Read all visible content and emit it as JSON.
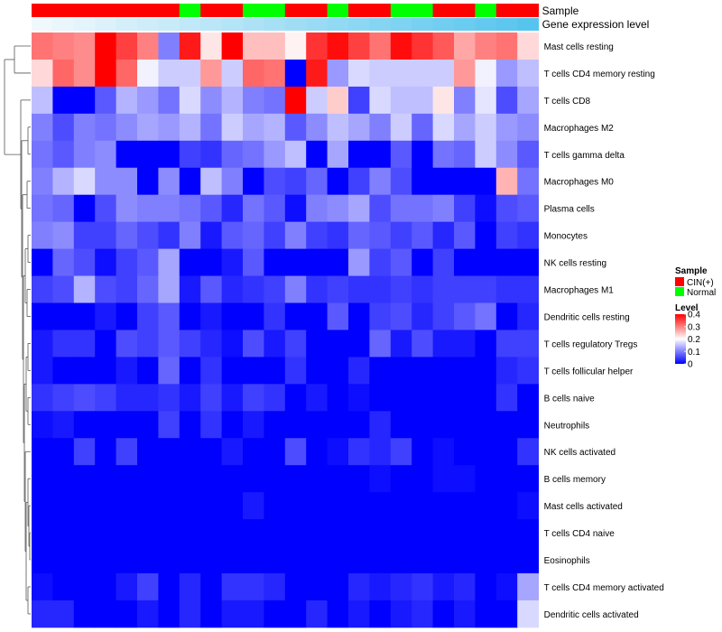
{
  "chart_data": {
    "type": "heatmap",
    "title": "",
    "annotation_rows": [
      {
        "name": "Sample",
        "key": "sample"
      },
      {
        "name": "Gene expression level",
        "key": "gene_expression_level"
      }
    ],
    "sample_groups": [
      "CIN(+)",
      "CIN(+)",
      "CIN(+)",
      "CIN(+)",
      "CIN(+)",
      "CIN(+)",
      "CIN(+)",
      "Normal",
      "CIN(+)",
      "CIN(+)",
      "Normal",
      "Normal",
      "CIN(+)",
      "CIN(+)",
      "Normal",
      "CIN(+)",
      "CIN(+)",
      "Normal",
      "Normal",
      "CIN(+)",
      "CIN(+)",
      "Normal",
      "CIN(+)",
      "CIN(+)"
    ],
    "gene_expression_level": [
      0.04,
      0.045,
      0.05,
      0.055,
      0.06,
      0.065,
      0.07,
      0.075,
      0.08,
      0.085,
      0.09,
      0.095,
      0.1,
      0.105,
      0.11,
      0.115,
      0.12,
      0.125,
      0.13,
      0.135,
      0.14,
      0.145,
      0.15,
      0.155
    ],
    "rows": [
      "Mast cells resting",
      "T cells CD4 memory resting",
      "T cells CD8",
      "Macrophages M2",
      "T cells gamma delta",
      "Macrophages M0",
      "Plasma cells",
      "Monocytes",
      "NK cells resting",
      "Macrophages M1",
      "Dendritic cells resting",
      "T cells regulatory  Tregs",
      "T cells follicular helper",
      "B cells naive",
      "Neutrophils",
      "NK cells activated",
      "B cells memory",
      "Mast cells activated",
      "T cells CD4 naive",
      "Eosinophils",
      "T cells CD4 memory activated",
      "Dendritic cells activated"
    ],
    "values": [
      [
        0.31,
        0.3,
        0.29,
        0.4,
        0.35,
        0.3,
        0.1,
        0.38,
        0.22,
        0.4,
        0.25,
        0.25,
        0.21,
        0.36,
        0.39,
        0.35,
        0.31,
        0.39,
        0.36,
        0.33,
        0.27,
        0.3,
        0.31,
        0.23
      ],
      [
        0.23,
        0.32,
        0.29,
        0.4,
        0.32,
        0.19,
        0.16,
        0.16,
        0.28,
        0.16,
        0.32,
        0.31,
        0.0,
        0.38,
        0.12,
        0.17,
        0.16,
        0.16,
        0.16,
        0.16,
        0.28,
        0.19,
        0.12,
        0.15
      ],
      [
        0.15,
        0.0,
        0.0,
        0.07,
        0.14,
        0.12,
        0.09,
        0.17,
        0.11,
        0.14,
        0.1,
        0.09,
        0.4,
        0.16,
        0.24,
        0.05,
        0.17,
        0.15,
        0.15,
        0.22,
        0.1,
        0.18,
        0.06,
        0.13
      ],
      [
        0.1,
        0.06,
        0.1,
        0.09,
        0.11,
        0.13,
        0.12,
        0.14,
        0.09,
        0.16,
        0.13,
        0.14,
        0.07,
        0.11,
        0.15,
        0.13,
        0.1,
        0.16,
        0.08,
        0.17,
        0.13,
        0.16,
        0.12,
        0.11
      ],
      [
        0.09,
        0.07,
        0.1,
        0.11,
        0.0,
        0.0,
        0.0,
        0.05,
        0.04,
        0.08,
        0.09,
        0.12,
        0.15,
        0.0,
        0.13,
        0.0,
        0.0,
        0.07,
        0.0,
        0.09,
        0.08,
        0.16,
        0.11,
        0.07
      ],
      [
        0.1,
        0.14,
        0.17,
        0.11,
        0.11,
        0.0,
        0.11,
        0.0,
        0.15,
        0.1,
        0.0,
        0.06,
        0.05,
        0.08,
        0.0,
        0.05,
        0.1,
        0.06,
        0.0,
        0.0,
        0.0,
        0.0,
        0.26,
        0.09
      ],
      [
        0.09,
        0.08,
        0.0,
        0.06,
        0.11,
        0.1,
        0.1,
        0.09,
        0.07,
        0.03,
        0.09,
        0.07,
        0.01,
        0.1,
        0.11,
        0.13,
        0.06,
        0.09,
        0.09,
        0.1,
        0.05,
        0.01,
        0.06,
        0.07
      ],
      [
        0.1,
        0.11,
        0.05,
        0.05,
        0.08,
        0.06,
        0.04,
        0.1,
        0.02,
        0.07,
        0.08,
        0.05,
        0.1,
        0.05,
        0.04,
        0.08,
        0.07,
        0.05,
        0.07,
        0.03,
        0.07,
        0.0,
        0.05,
        0.04
      ],
      [
        0.0,
        0.08,
        0.06,
        0.01,
        0.05,
        0.07,
        0.13,
        0.0,
        0.0,
        0.02,
        0.07,
        0.0,
        0.0,
        0.0,
        0.0,
        0.12,
        0.05,
        0.07,
        0.0,
        0.05,
        0.0,
        0.0,
        0.0,
        0.0
      ],
      [
        0.05,
        0.06,
        0.14,
        0.06,
        0.05,
        0.08,
        0.13,
        0.02,
        0.07,
        0.03,
        0.04,
        0.05,
        0.1,
        0.04,
        0.05,
        0.04,
        0.04,
        0.05,
        0.04,
        0.05,
        0.05,
        0.05,
        0.04,
        0.04
      ],
      [
        0.0,
        0.0,
        0.0,
        0.02,
        0.0,
        0.05,
        0.07,
        0.0,
        0.02,
        0.0,
        0.0,
        0.04,
        0.0,
        0.0,
        0.07,
        0.0,
        0.05,
        0.06,
        0.03,
        0.05,
        0.07,
        0.09,
        0.0,
        0.03
      ],
      [
        0.02,
        0.04,
        0.04,
        0.0,
        0.06,
        0.05,
        0.07,
        0.05,
        0.03,
        0.01,
        0.06,
        0.02,
        0.05,
        0.0,
        0.0,
        0.0,
        0.08,
        0.02,
        0.06,
        0.02,
        0.02,
        0.0,
        0.05,
        0.05
      ],
      [
        0.02,
        0.0,
        0.0,
        0.0,
        0.02,
        0.0,
        0.08,
        0.0,
        0.04,
        0.0,
        0.0,
        0.0,
        0.04,
        0.0,
        0.0,
        0.03,
        0.0,
        0.0,
        0.0,
        0.0,
        0.0,
        0.0,
        0.03,
        0.04
      ],
      [
        0.04,
        0.05,
        0.06,
        0.05,
        0.03,
        0.03,
        0.04,
        0.02,
        0.05,
        0.02,
        0.05,
        0.04,
        0.0,
        0.02,
        0.0,
        0.01,
        0.0,
        0.0,
        0.0,
        0.0,
        0.0,
        0.0,
        0.04,
        0.0
      ],
      [
        0.01,
        0.02,
        0.0,
        0.0,
        0.0,
        0.0,
        0.05,
        0.0,
        0.04,
        0.0,
        0.02,
        0.0,
        0.0,
        0.0,
        0.0,
        0.0,
        0.03,
        0.0,
        0.0,
        0.0,
        0.0,
        0.0,
        0.0,
        0.0
      ],
      [
        0.0,
        0.0,
        0.05,
        0.0,
        0.05,
        0.0,
        0.0,
        0.0,
        0.0,
        0.02,
        0.0,
        0.0,
        0.06,
        0.0,
        0.01,
        0.04,
        0.03,
        0.05,
        0.0,
        0.01,
        0.0,
        0.0,
        0.0,
        0.04
      ],
      [
        0.0,
        0.0,
        0.0,
        0.0,
        0.0,
        0.0,
        0.0,
        0.0,
        0.0,
        0.0,
        0.0,
        0.0,
        0.0,
        0.0,
        0.0,
        0.0,
        0.01,
        0.0,
        0.0,
        0.01,
        0.01,
        0.0,
        0.0,
        0.0
      ],
      [
        0.0,
        0.0,
        0.0,
        0.0,
        0.0,
        0.0,
        0.0,
        0.0,
        0.0,
        0.0,
        0.02,
        0.0,
        0.0,
        0.0,
        0.0,
        0.0,
        0.0,
        0.0,
        0.0,
        0.0,
        0.0,
        0.0,
        0.0,
        0.01
      ],
      [
        0.0,
        0.0,
        0.0,
        0.0,
        0.0,
        0.0,
        0.0,
        0.0,
        0.0,
        0.0,
        0.0,
        0.0,
        0.0,
        0.0,
        0.0,
        0.0,
        0.0,
        0.0,
        0.0,
        0.0,
        0.0,
        0.0,
        0.0,
        0.0
      ],
      [
        0.0,
        0.0,
        0.0,
        0.0,
        0.0,
        0.0,
        0.0,
        0.0,
        0.0,
        0.0,
        0.0,
        0.0,
        0.0,
        0.0,
        0.0,
        0.0,
        0.0,
        0.0,
        0.0,
        0.0,
        0.0,
        0.0,
        0.0,
        0.0
      ],
      [
        0.01,
        0.0,
        0.0,
        0.0,
        0.02,
        0.05,
        0.0,
        0.03,
        0.0,
        0.04,
        0.04,
        0.03,
        0.0,
        0.0,
        0.0,
        0.03,
        0.02,
        0.03,
        0.04,
        0.02,
        0.03,
        0.0,
        0.01,
        0.13
      ],
      [
        0.03,
        0.03,
        0.0,
        0.0,
        0.0,
        0.02,
        0.0,
        0.03,
        0.0,
        0.02,
        0.02,
        0.0,
        0.0,
        0.03,
        0.0,
        0.02,
        0.0,
        0.02,
        0.03,
        0.0,
        0.02,
        0.0,
        0.0,
        0.17
      ]
    ],
    "color_scale": {
      "low": "#0000FF",
      "mid": "#FFFFFF",
      "high": "#FF0000",
      "min": 0,
      "max": 0.4
    },
    "legend": {
      "sample_title": "Sample",
      "sample_items": [
        {
          "label": "CIN(+)",
          "color": "#FF0000"
        },
        {
          "label": "Normal",
          "color": "#00FF00"
        }
      ],
      "level_title": "Level",
      "level_ticks": [
        {
          "label": "0.4",
          "value": 0.4
        },
        {
          "label": "0.3",
          "value": 0.3
        },
        {
          "label": "0.2",
          "value": 0.2
        },
        {
          "label": "0.1",
          "value": 0.1
        },
        {
          "label": "0",
          "value": 0
        }
      ]
    },
    "dendrogram": true,
    "legend_position": "right"
  }
}
